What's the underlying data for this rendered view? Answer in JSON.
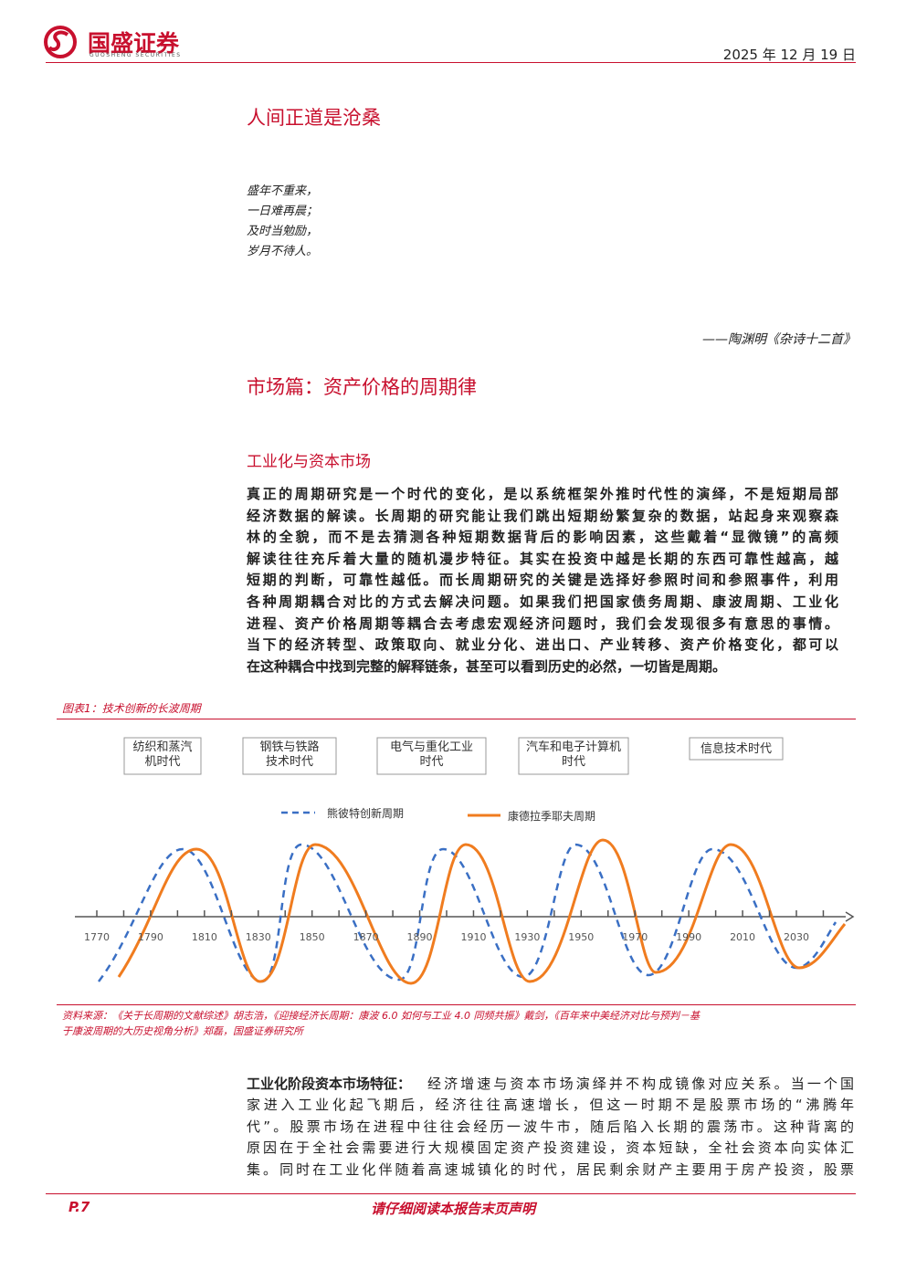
{
  "header": {
    "brand": "国盛证券",
    "brand_en": "GUOSHENG SECURITIES",
    "date": "2025 年 12 月 19 日"
  },
  "epigraph": {
    "title": "人间正道是沧桑",
    "lines": [
      "盛年不重来，",
      "一日难再晨；",
      "及时当勉励，",
      "岁月不待人。"
    ],
    "attribution": "——陶渊明《杂诗十二首》"
  },
  "section": {
    "title": "市场篇：资产价格的周期律",
    "subtitle": "工业化与资本市场",
    "paragraph1": [
      "真正的周期研究是一个时代的变化，是以系统框架外推时代性的演绎，不是短期局部",
      "经济数据的解读。长周期的研究能让我们跳出短期纷繁复杂的数据，站起身来观察森",
      "林的全貌，而不是去猜测各种短期数据背后的影响因素，这些戴着“显微镜”的高频",
      "解读往往充斥着大量的随机漫步特征。其实在投资中越是长期的东西可靠性越高，越",
      "短期的判断，可靠性越低。而长周期研究的关键是选择好参照时间和参照事件，利用",
      "各种周期耦合对比的方式去解决问题。如果我们把国家债务周期、康波周期、工业化",
      "进程、资产价格周期等耦合去考虑宏观经济问题时，我们会发现很多有意思的事情。",
      "当下的经济转型、政策取向、就业分化、进出口、产业转移、资产价格变化，都可以",
      "在这种耦合中找到完整的解释链条，甚至可以看到历史的必然，一切皆是周期。"
    ],
    "paragraph2": {
      "lead": "工业化阶段资本市场特征：",
      "lines": [
        "经济增速与资本市场演绎并不构成镜像对应关系。当一个国",
        "家进入工业化起飞期后，经济往往高速增长，但这一时期不是股票市场的“沸腾年",
        "代”。股票市场在进程中往往会经历一波牛市，随后陷入长期的震荡市。这种背离的",
        "原因在于全社会需要进行大规模固定资产投资建设，资本短缺，全社会资本向实体汇",
        "集。同时在工业化伴随着高速城镇化的时代，居民剩余财产主要用于房产投资，股票"
      ]
    }
  },
  "figure": {
    "caption": "图表1：技术创新的长波周期",
    "eras": [
      [
        "纺织和蒸汽",
        "机时代"
      ],
      [
        "钢铁与铁路",
        "技术时代"
      ],
      [
        "电气与重化工业",
        "时代"
      ],
      [
        "汽车和电子计算机",
        "时代"
      ],
      [
        "信息技术时代"
      ]
    ],
    "legend": [
      "熊彼特创新周期",
      "康德拉季耶夫周期"
    ],
    "axis_years": [
      1770,
      1790,
      1810,
      1830,
      1850,
      1870,
      1890,
      1910,
      1930,
      1950,
      1970,
      1990,
      2010,
      2030
    ],
    "source": [
      "资料来源：《关于长周期的文献综述》胡志浩，《迎接经济长周期：康波 6.0 如何与工业 4.0 同频共振》戴剑，《百年来中美经济对比与预判－基",
      "于康波周期的大历史视角分析》郑磊，国盛证券研究所"
    ]
  },
  "footer": {
    "page": "P.7",
    "notice": "请仔细阅读本报告末页声明"
  }
}
